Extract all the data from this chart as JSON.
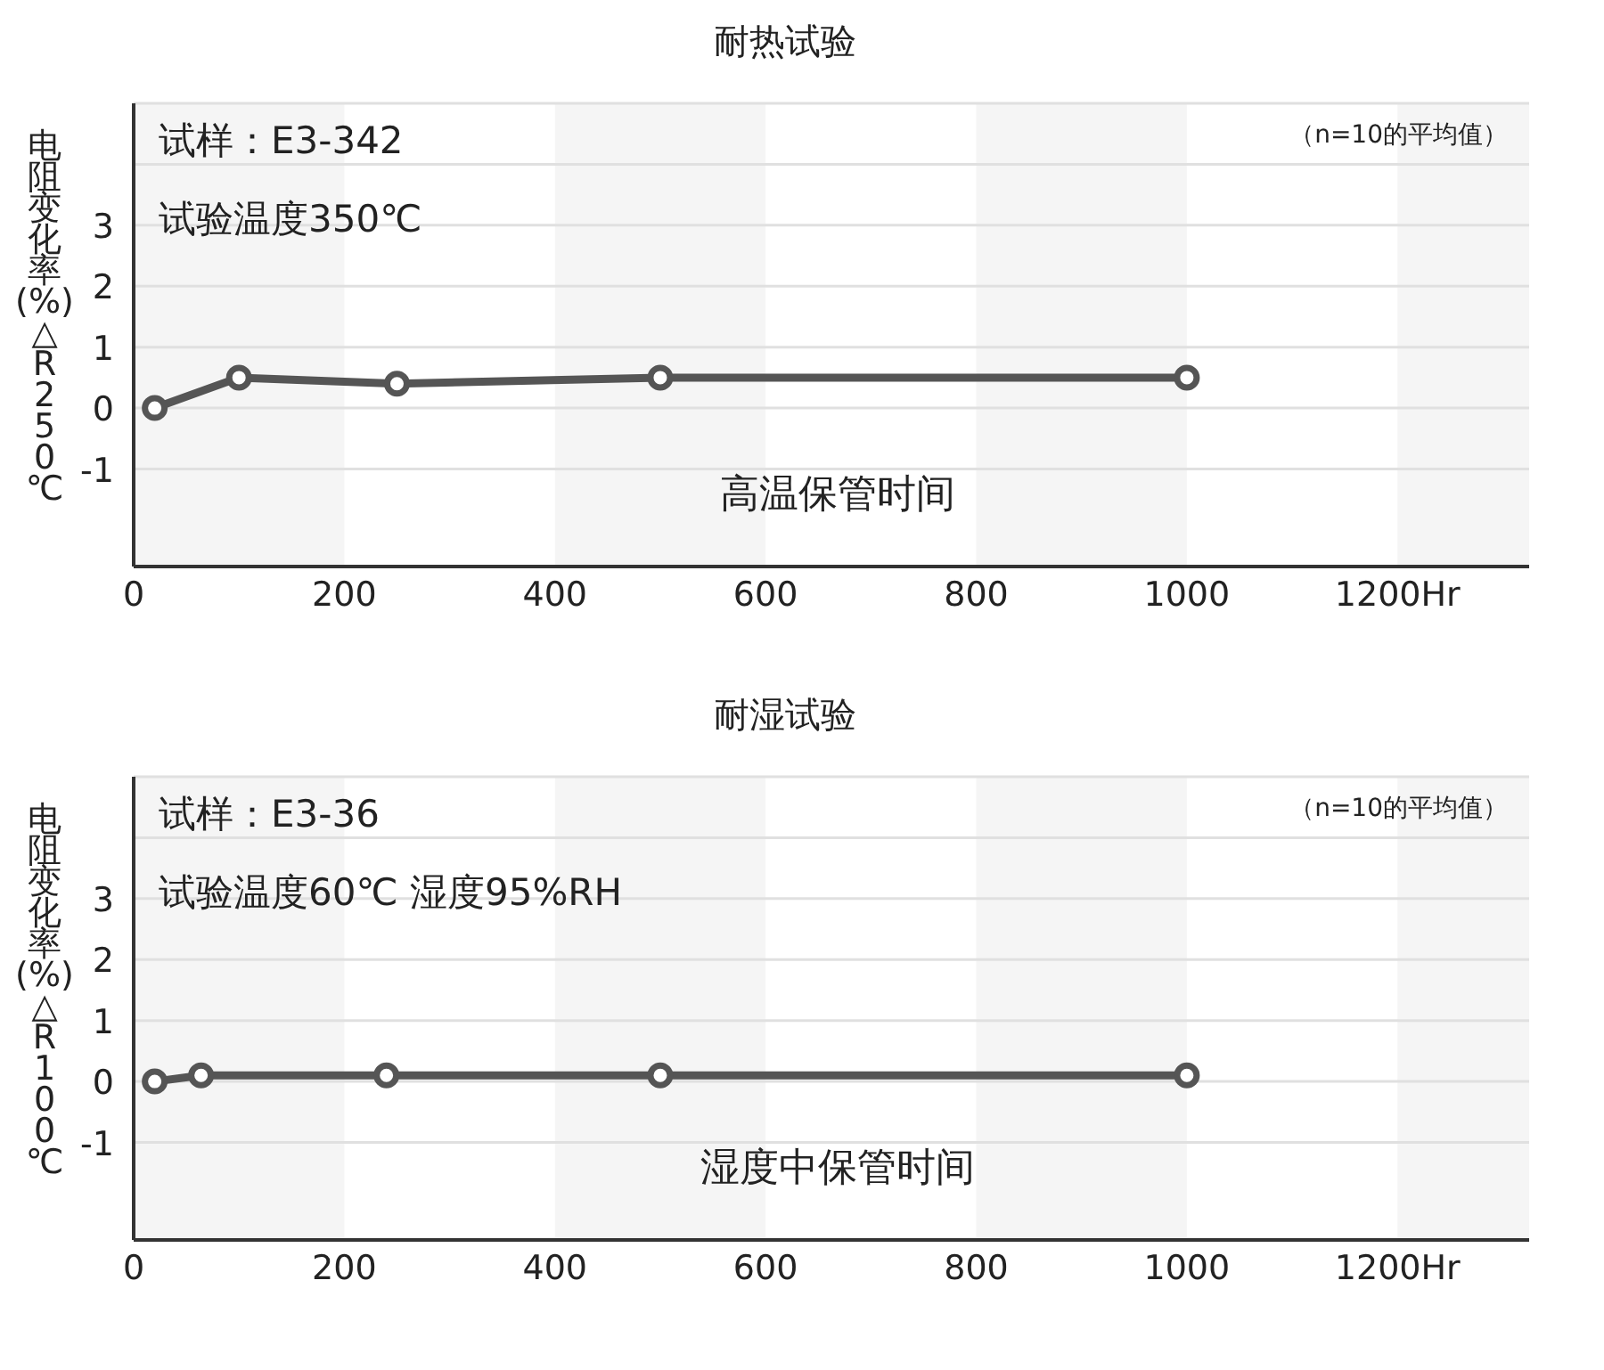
{
  "chart_data": [
    {
      "type": "line",
      "title": "耐热试验",
      "xlabel": "高温保管时间",
      "ylabel": "电阻变化率(%)△R250℃",
      "annotations": [
        "试样：E3-342",
        "试验温度350℃",
        "（n=10的平均值）"
      ],
      "x": [
        20,
        100,
        250,
        500,
        1000
      ],
      "series": [
        {
          "color": "#555555",
          "values": [
            0,
            0.5,
            0.4,
            0.5,
            0.5
          ]
        }
      ],
      "xlim": [
        0,
        1325
      ],
      "xticks": [
        0,
        200,
        400,
        600,
        800,
        1000,
        {
          "value": 1200,
          "label": "1200Hr"
        }
      ],
      "ylim": [
        -2.6,
        5
      ],
      "yticks": [
        -1,
        0,
        1,
        2,
        3,
        {
          "value": 4,
          "label": null
        }
      ],
      "bands": [
        {
          "axis": "x",
          "from": 0,
          "to": 200,
          "color": "#f5f5f5"
        },
        {
          "axis": "x",
          "from": 400,
          "to": 600,
          "color": "#f5f5f5"
        },
        {
          "axis": "x",
          "from": 800,
          "to": 1000,
          "color": "#f5f5f5"
        },
        {
          "axis": "x",
          "from": 1200,
          "to": 1325,
          "color": "#f5f5f5"
        }
      ],
      "grid": "y",
      "marker": "circle",
      "line_style": "solid"
    },
    {
      "type": "line",
      "title": "耐湿试验",
      "xlabel": "湿度中保管时间",
      "ylabel": "电阻变化率(%)△R100℃",
      "annotations": [
        "试样：E3-36",
        "试验温度60℃ 湿度95%RH",
        "（n=10的平均值）"
      ],
      "x": [
        20,
        64,
        240,
        500,
        1000
      ],
      "series": [
        {
          "color": "#555555",
          "values": [
            0,
            0.1,
            0.1,
            0.1,
            0.1
          ]
        }
      ],
      "xlim": [
        0,
        1325
      ],
      "xticks": [
        0,
        200,
        400,
        600,
        800,
        1000,
        {
          "value": 1200,
          "label": "1200Hr"
        }
      ],
      "ylim": [
        -2.6,
        5
      ],
      "yticks": [
        -1,
        0,
        1,
        2,
        3,
        {
          "value": 4,
          "label": null
        }
      ],
      "bands": [
        {
          "axis": "x",
          "from": 0,
          "to": 200,
          "color": "#f5f5f5"
        },
        {
          "axis": "x",
          "from": 400,
          "to": 600,
          "color": "#f5f5f5"
        },
        {
          "axis": "x",
          "from": 800,
          "to": 1000,
          "color": "#f5f5f5"
        },
        {
          "axis": "x",
          "from": 1200,
          "to": 1325,
          "color": "#f5f5f5"
        }
      ],
      "grid": "y",
      "marker": "circle",
      "line_style": "solid"
    }
  ]
}
